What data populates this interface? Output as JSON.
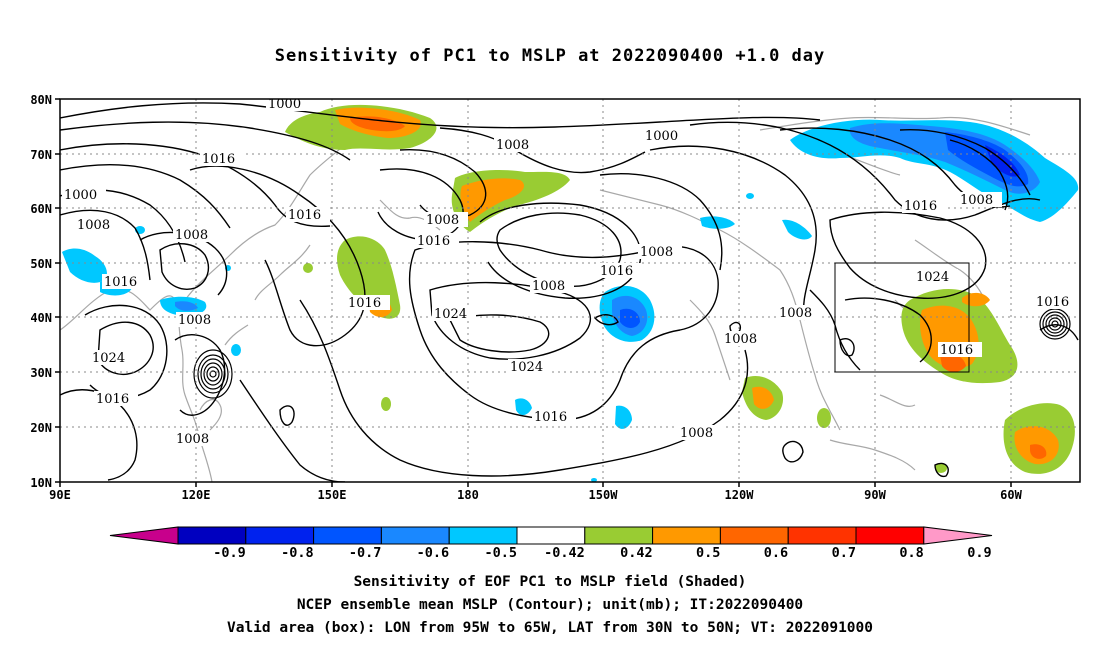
{
  "title": "Sensitivity of PC1 to MSLP at 2022090400 +1.0 day",
  "lat_labels": [
    "80N",
    "70N",
    "60N",
    "50N",
    "40N",
    "30N",
    "20N",
    "10N"
  ],
  "lon_labels": [
    "90E",
    "120E",
    "150E",
    "180",
    "150W",
    "120W",
    "90W",
    "60W"
  ],
  "contour_labels": {
    "c1000a": "1000",
    "c1000b": "1000",
    "c1000c": "1000",
    "c1008a": "1008",
    "c1008b": "1008",
    "c1008c": "1008",
    "c1008d": "1008",
    "c1008e": "1008",
    "c1008f": "1008",
    "c1008g": "1008",
    "c1008h": "1008",
    "c1008i": "1008",
    "c1008j": "1008",
    "c1008k": "1008",
    "c1008l": "1008",
    "c1016a": "1016",
    "c1016b": "1016",
    "c1016c": "1016",
    "c1016d": "1016",
    "c1016e": "1016",
    "c1016f": "1016",
    "c1016g": "1016",
    "c1016h": "1016",
    "c1016i": "1016",
    "c1016j": "1016",
    "c1016k": "1016",
    "c1024a": "1024",
    "c1024b": "1024",
    "c1024c": "1024",
    "c1024d": "1024"
  },
  "colorbar": {
    "labels": [
      "-0.9",
      "-0.8",
      "-0.7",
      "-0.6",
      "-0.5",
      "-0.42",
      "0.42",
      "0.5",
      "0.6",
      "0.7",
      "0.8",
      "0.9"
    ],
    "colors": [
      "#0000c0",
      "#0022ee",
      "#0055ff",
      "#1a88ff",
      "#00c8ff",
      "#ffffff",
      "#99cc33",
      "#ff9900",
      "#ff6600",
      "#ff3300",
      "#ff0000"
    ],
    "low_end_color": "#c8008c",
    "high_end_color": "#ff99c8"
  },
  "captions": {
    "line1": "Sensitivity of EOF PC1 to MSLP field (Shaded)",
    "line2": "NCEP ensemble mean MSLP (Contour); unit(mb); IT:2022090400",
    "line3": "Valid area (box): LON from 95W to 65W, LAT from 30N to 50N; VT: 2022091000"
  },
  "valid_box": {
    "lon": [
      "95W",
      "65W"
    ],
    "lat": [
      "30N",
      "50N"
    ]
  }
}
